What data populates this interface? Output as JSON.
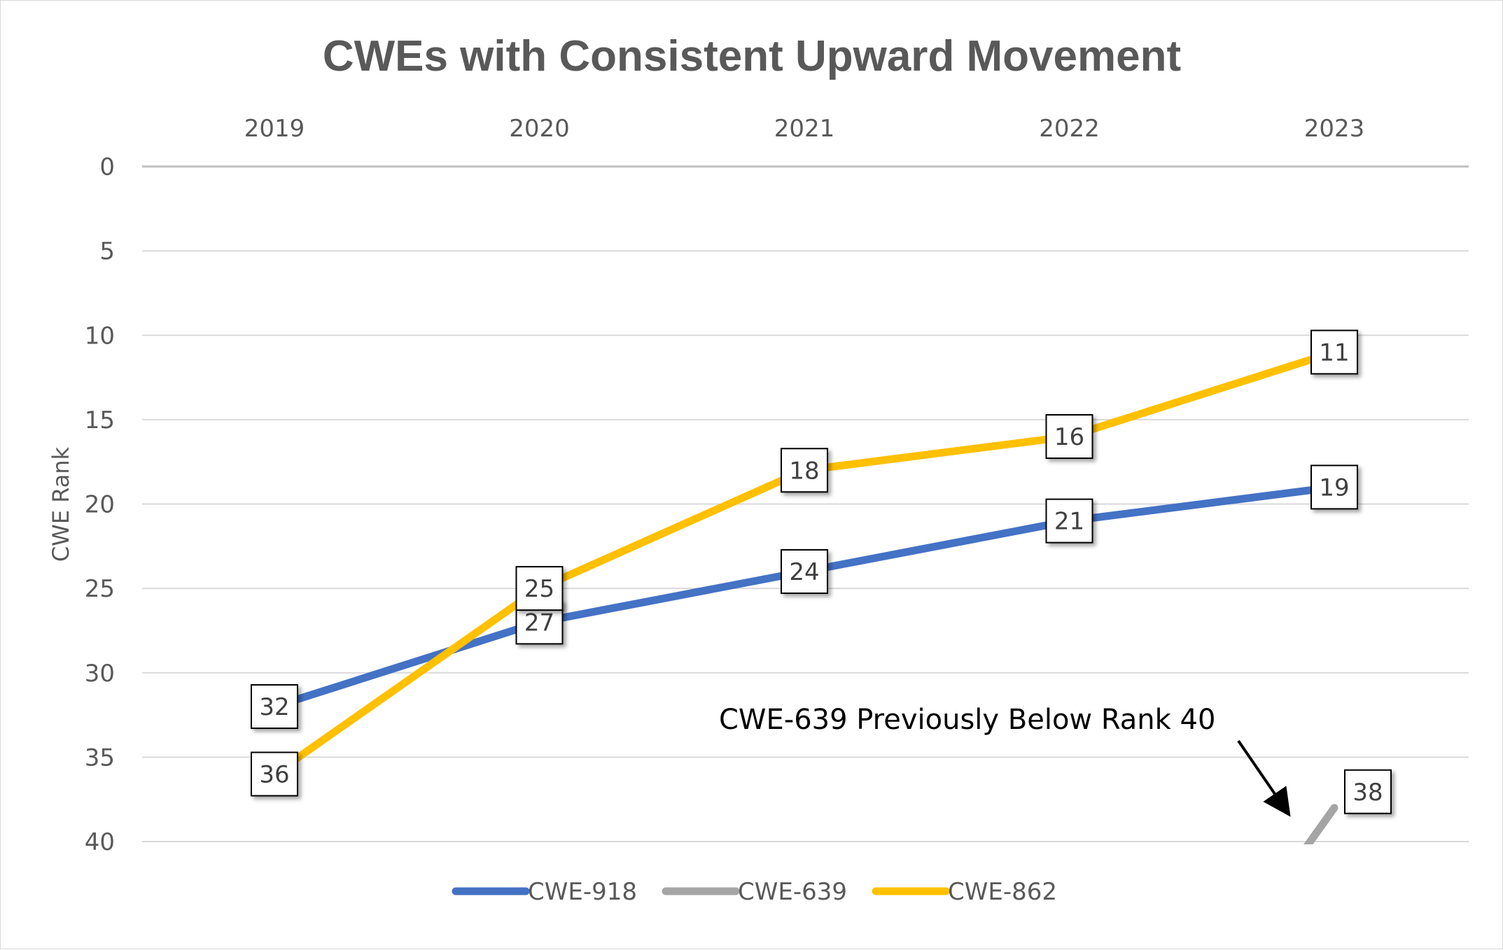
{
  "chart_data": {
    "type": "line",
    "title": "CWEs with Consistent Upward Movement",
    "xlabel": "",
    "ylabel": "CWE Rank",
    "categories": [
      "2019",
      "2020",
      "2021",
      "2022",
      "2023"
    ],
    "y_ticks": [
      "0",
      "5",
      "10",
      "15",
      "20",
      "25",
      "30",
      "35",
      "40"
    ],
    "ylim": [
      0,
      40
    ],
    "y_reversed": true,
    "x_axis_position": "top",
    "grid": true,
    "legend_position": "bottom",
    "series": [
      {
        "name": "CWE-918",
        "color": "#4472c4",
        "values": [
          32,
          27,
          24,
          21,
          19
        ],
        "labels": [
          "32",
          "27",
          "24",
          "21",
          "19"
        ]
      },
      {
        "name": "CWE-639",
        "color": "#a5a5a5",
        "values": [
          null,
          null,
          null,
          null,
          38
        ],
        "labels": [
          null,
          null,
          null,
          null,
          "38"
        ]
      },
      {
        "name": "CWE-862",
        "color": "#ffc000",
        "values": [
          36,
          25,
          18,
          16,
          11
        ],
        "labels": [
          "36",
          "25",
          "18",
          "16",
          "11"
        ]
      }
    ],
    "annotation": {
      "text": "CWE-639 Previously Below Rank 40",
      "target_series": "CWE-639"
    }
  }
}
